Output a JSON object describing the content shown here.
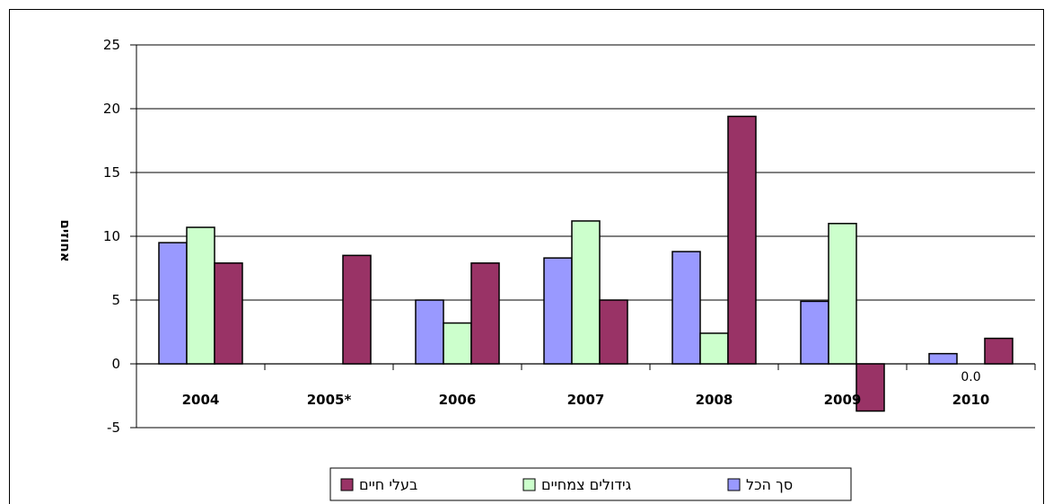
{
  "chart_data": {
    "type": "bar",
    "title": "",
    "xlabel": "",
    "ylabel": "אחוזים",
    "ylim": [
      -5,
      25
    ],
    "yticks": [
      -5,
      0,
      5,
      10,
      15,
      20,
      25
    ],
    "grid": "horizontal",
    "legend_position": "bottom",
    "categories": [
      "2004",
      "2005*",
      "2006",
      "2007",
      "2008",
      "2009",
      "2010"
    ],
    "series": [
      {
        "name": "סך הכל",
        "color": "#9999ff",
        "values": [
          9.5,
          null,
          5.0,
          8.3,
          8.8,
          4.9,
          0.8
        ]
      },
      {
        "name": "גידולים צמחיים",
        "color": "#ccffcc",
        "values": [
          10.7,
          null,
          3.2,
          11.2,
          2.4,
          11.0,
          0.0
        ]
      },
      {
        "name": "בעלי חיים",
        "color": "#993366",
        "values": [
          7.9,
          8.5,
          7.9,
          5.0,
          19.4,
          -3.7,
          2.0
        ]
      }
    ],
    "data_labels": [
      {
        "category": "2010",
        "series": "גידולים צמחיים",
        "text": "0.0"
      }
    ]
  }
}
